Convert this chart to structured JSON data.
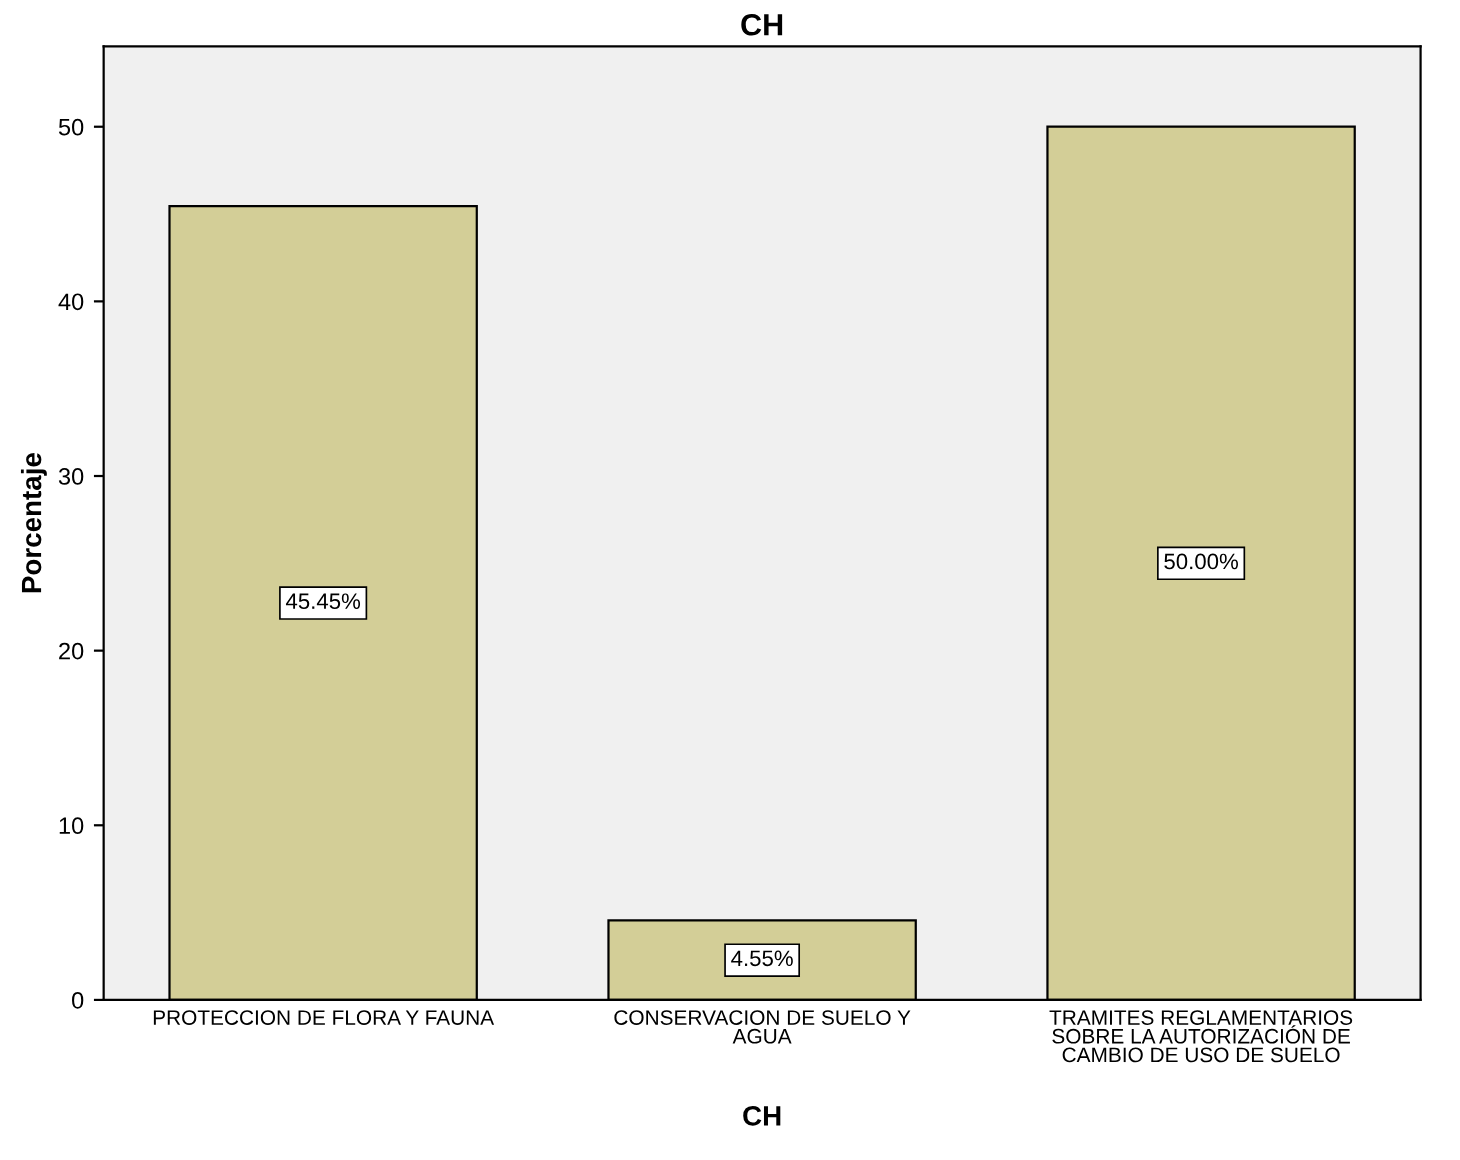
{
  "chart_data": {
    "type": "bar",
    "title": "CH",
    "xlabel": "CH",
    "ylabel": "Porcentaje",
    "categories": [
      "PROTECCION DE FLORA Y FAUNA",
      "CONSERVACION DE SUELO Y\nAGUA",
      "TRAMITES REGLAMENTARIOS\nSOBRE LA AUTORIZACIÓN DE\nCAMBIO DE USO DE SUELO"
    ],
    "values": [
      45.45,
      4.55,
      50.0
    ],
    "value_labels": [
      "45.45%",
      "4.55%",
      "50.00%"
    ],
    "color": "#d3ce97",
    "ylim": [
      0,
      54.6
    ],
    "yticks": [
      0,
      10,
      20,
      30,
      40,
      50
    ],
    "grid": false,
    "legend": false
  }
}
